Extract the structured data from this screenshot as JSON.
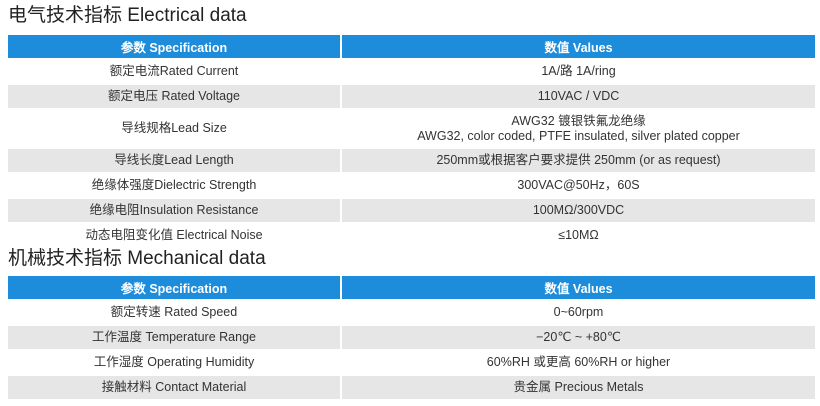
{
  "electrical": {
    "title": "电气技术指标 Electrical data",
    "header": {
      "spec": "参数 Specification",
      "values": "数值   Values"
    },
    "rows": [
      {
        "spec": "额定电流Rated Current",
        "value": "1A/路 1A/ring"
      },
      {
        "spec": "额定电压 Rated Voltage",
        "value": "110VAC / VDC"
      },
      {
        "spec": "导线规格Lead Size",
        "value": "AWG32  镀银铁氟龙绝缘",
        "value2": "AWG32, color coded, PTFE insulated, silver plated copper"
      },
      {
        "spec": "导线长度Lead Length",
        "value": "250mm或根据客户要求提供  250mm (or as request)"
      },
      {
        "spec": "绝缘体强度Dielectric Strength",
        "value": "300VAC@50Hz，60S"
      },
      {
        "spec": "绝缘电阻Insulation Resistance",
        "value": "100MΩ/300VDC"
      },
      {
        "spec": "动态电阻变化值 Electrical Noise",
        "value": "≤10MΩ"
      }
    ]
  },
  "mechanical": {
    "title": "机械技术指标 Mechanical data",
    "header": {
      "spec": "参数   Specification",
      "values": "数值   Values"
    },
    "rows": [
      {
        "spec": "额定转速 Rated Speed",
        "value": "0~60rpm"
      },
      {
        "spec": "工作温度 Temperature Range",
        "value": "−20℃ ~ +80℃"
      },
      {
        "spec": "工作湿度 Operating Humidity",
        "value": "60%RH 或更高  60%RH or higher"
      },
      {
        "spec": "接触材料 Contact Material",
        "value": "贵金属 Precious Metals"
      }
    ]
  },
  "colors": {
    "header_bg": "#1d8ddb",
    "stripe": "#e6e6e7"
  }
}
